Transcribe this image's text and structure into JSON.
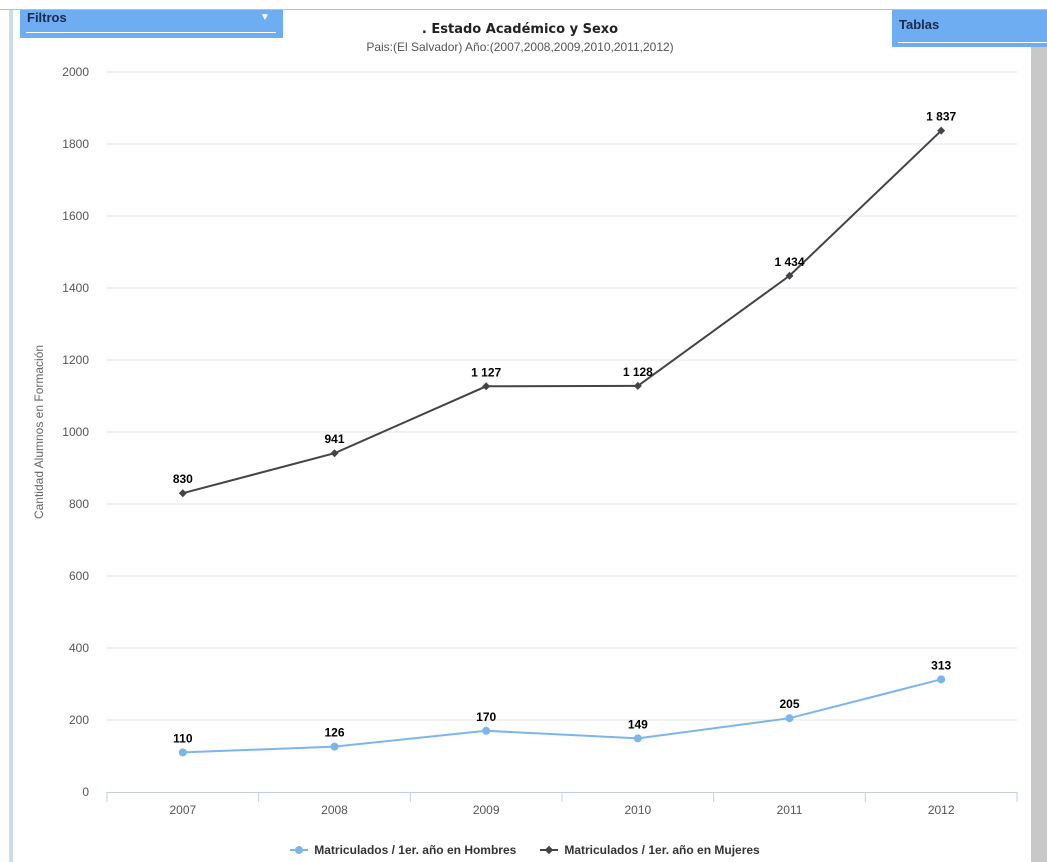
{
  "panel": {
    "filters_label": "Filtros",
    "tables_label": "Tablas"
  },
  "colors": {
    "hombres": "#7cb5ec",
    "mujeres": "#434348",
    "grid": "#e6e6e6",
    "header": "#6fadf2"
  },
  "icons": {
    "dropdown": "caret-down-icon"
  },
  "chart_data": {
    "type": "line",
    "title": ". Estado Académico y Sexo",
    "subtitle": "Pais:(El Salvador) Año:(2007,2008,2009,2010,2011,2012)",
    "xlabel": "",
    "ylabel": "Cantidad Alumnos en Formación",
    "ylim": [
      0,
      2000
    ],
    "yticks": [
      "0",
      "200",
      "400",
      "600",
      "800",
      "1000",
      "1200",
      "1400",
      "1600",
      "1800",
      "2000"
    ],
    "categories": [
      "2007",
      "2008",
      "2009",
      "2010",
      "2011",
      "2012"
    ],
    "grid": true,
    "legend_position": "bottom",
    "series": [
      {
        "name": "Matriculados / 1er. año en Hombres",
        "values": [
          110,
          126,
          170,
          149,
          205,
          313
        ],
        "labels": [
          "110",
          "126",
          "170",
          "149",
          "205",
          "313"
        ]
      },
      {
        "name": "Matriculados / 1er. año en Mujeres",
        "values": [
          830,
          941,
          1127,
          1128,
          1434,
          1837
        ],
        "labels": [
          "830",
          "941",
          "1 127",
          "1 128",
          "1 434",
          "1 837"
        ]
      }
    ]
  }
}
